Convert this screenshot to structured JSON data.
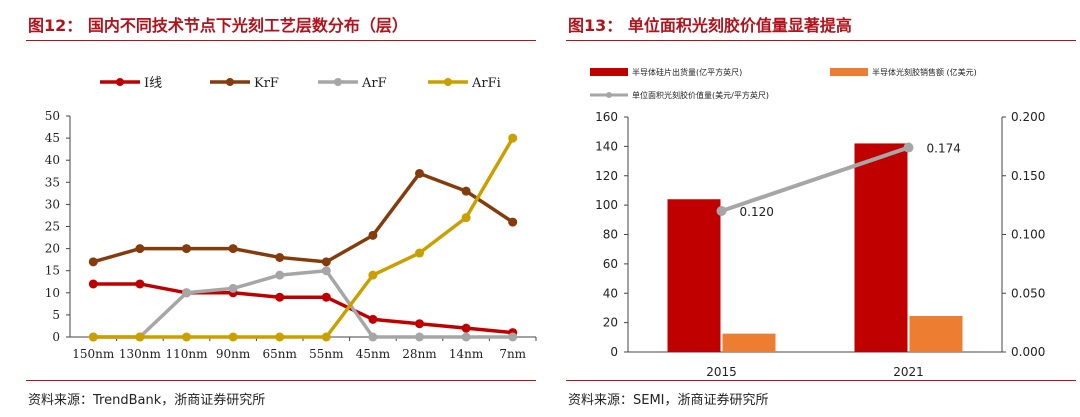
{
  "left": {
    "title": "图12： 国内不同技术节点下光刻工艺层数分布（层）",
    "source": "资料来源：TrendBank，浙商证券研究所",
    "chart_data": {
      "type": "line",
      "categories": [
        "150nm",
        "130nm",
        "110nm",
        "90nm",
        "65nm",
        "55nm",
        "45nm",
        "28nm",
        "14nm",
        "7nm"
      ],
      "ylim": [
        0,
        50
      ],
      "yticks": [
        "0",
        "5",
        "10",
        "15",
        "20",
        "25",
        "30",
        "35",
        "40",
        "45",
        "50"
      ],
      "legend_placement": "top",
      "series": [
        {
          "name": "I线",
          "color": "#c00000",
          "values": [
            12,
            12,
            10,
            10,
            9,
            9,
            4,
            3,
            2,
            1
          ]
        },
        {
          "name": "KrF",
          "color": "#843c0c",
          "values": [
            17,
            20,
            20,
            20,
            18,
            17,
            23,
            37,
            33,
            26
          ]
        },
        {
          "name": "ArF",
          "color": "#a6a6a6",
          "values": [
            0,
            0,
            10,
            11,
            14,
            15,
            0,
            0,
            0,
            0
          ]
        },
        {
          "name": "ArFi",
          "color": "#c9a000",
          "values": [
            0,
            0,
            0,
            0,
            0,
            0,
            14,
            19,
            27,
            45
          ]
        }
      ]
    }
  },
  "right": {
    "title": "图13： 单位面积光刻胶价值量显著提高",
    "source": "资料来源：SEMI，浙商证券研究所",
    "chart_data": {
      "type": "bar",
      "categories": [
        "2015",
        "2021"
      ],
      "ylim": [
        0,
        160
      ],
      "yticks": [
        "0",
        "20",
        "40",
        "60",
        "80",
        "100",
        "120",
        "140",
        "160"
      ],
      "y2lim": [
        0,
        0.2
      ],
      "y2ticks": [
        "0.000",
        "0.050",
        "0.100",
        "0.150",
        "0.200"
      ],
      "legend_placement": "top",
      "series": [
        {
          "name": "半导体硅片出货量(亿平方英尺)",
          "color": "#c00000",
          "axis": "left",
          "values": [
            104,
            142
          ]
        },
        {
          "name": "半导体光刻胶销售额 (亿美元)",
          "color": "#ed7d31",
          "axis": "left",
          "values": [
            12.5,
            24.5
          ]
        },
        {
          "name": "单位面积光刻胶价值量(美元/平方英尺)",
          "color": "#a6a6a6",
          "axis": "right",
          "type": "line",
          "values": [
            0.12,
            0.174
          ],
          "labels": [
            "0.120",
            "0.174"
          ]
        }
      ]
    }
  }
}
